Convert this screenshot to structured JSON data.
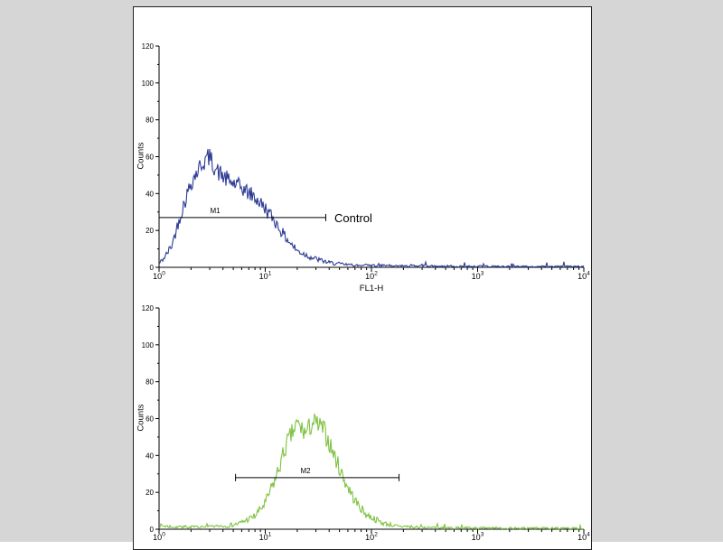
{
  "figure": {
    "background": "#d6d6d6",
    "panel_bg": "#ffffff",
    "panel_border": "#222222"
  },
  "chart_data": [
    {
      "type": "histogram",
      "title": "",
      "xlabel": "FL1-H",
      "ylabel": "Counts",
      "xscale": "log",
      "xlim": [
        1,
        10000
      ],
      "xticks_exp": [
        0,
        1,
        2,
        3,
        4
      ],
      "xtick_base": "10",
      "ylim": [
        0,
        120
      ],
      "yticks": [
        0,
        20,
        40,
        60,
        80,
        100,
        120
      ],
      "line_color": "#2b3a93",
      "noise": 5.5,
      "seed": 42,
      "curve_anchors": [
        [
          0,
          2
        ],
        [
          0.06,
          6
        ],
        [
          0.12,
          12
        ],
        [
          0.2,
          28
        ],
        [
          0.3,
          46
        ],
        [
          0.4,
          56
        ],
        [
          0.47,
          60
        ],
        [
          0.55,
          52
        ],
        [
          0.65,
          47
        ],
        [
          0.78,
          43
        ],
        [
          0.9,
          38
        ],
        [
          1.0,
          32
        ],
        [
          1.08,
          26
        ],
        [
          1.18,
          17
        ],
        [
          1.3,
          9
        ],
        [
          1.45,
          5
        ],
        [
          1.6,
          2.5
        ],
        [
          1.8,
          1.2
        ],
        [
          2.2,
          0.8
        ],
        [
          3.0,
          0.5
        ],
        [
          4.0,
          0.4
        ]
      ],
      "marker": {
        "label": "M1",
        "y": 27,
        "from_exp": 0.0,
        "to_exp": 1.57,
        "label_exp": 0.52,
        "annotation": "Control"
      }
    },
    {
      "type": "histogram",
      "title": "",
      "xlabel": "",
      "ylabel": "Counts",
      "xscale": "log",
      "xlim": [
        1,
        10000
      ],
      "xticks_exp": [
        0,
        1,
        2,
        3,
        4
      ],
      "xtick_base": "10",
      "ylim": [
        0,
        120
      ],
      "yticks": [
        0,
        20,
        40,
        60,
        80,
        100,
        120
      ],
      "line_color": "#7fc241",
      "noise": 6,
      "seed": 7,
      "curve_anchors": [
        [
          0,
          2
        ],
        [
          0.1,
          1.5
        ],
        [
          0.4,
          1
        ],
        [
          0.6,
          1.5
        ],
        [
          0.75,
          3
        ],
        [
          0.9,
          7
        ],
        [
          1.0,
          14
        ],
        [
          1.1,
          28
        ],
        [
          1.2,
          46
        ],
        [
          1.3,
          57
        ],
        [
          1.38,
          52
        ],
        [
          1.45,
          58
        ],
        [
          1.55,
          54
        ],
        [
          1.65,
          40
        ],
        [
          1.75,
          26
        ],
        [
          1.85,
          15
        ],
        [
          1.95,
          8
        ],
        [
          2.1,
          3.5
        ],
        [
          2.25,
          1.5
        ],
        [
          2.6,
          0.8
        ],
        [
          3.2,
          0.6
        ],
        [
          4.0,
          0.5
        ]
      ],
      "marker": {
        "label": "M2",
        "y": 28,
        "from_exp": 0.72,
        "to_exp": 2.26,
        "label_exp": 1.38,
        "annotation": ""
      }
    }
  ]
}
